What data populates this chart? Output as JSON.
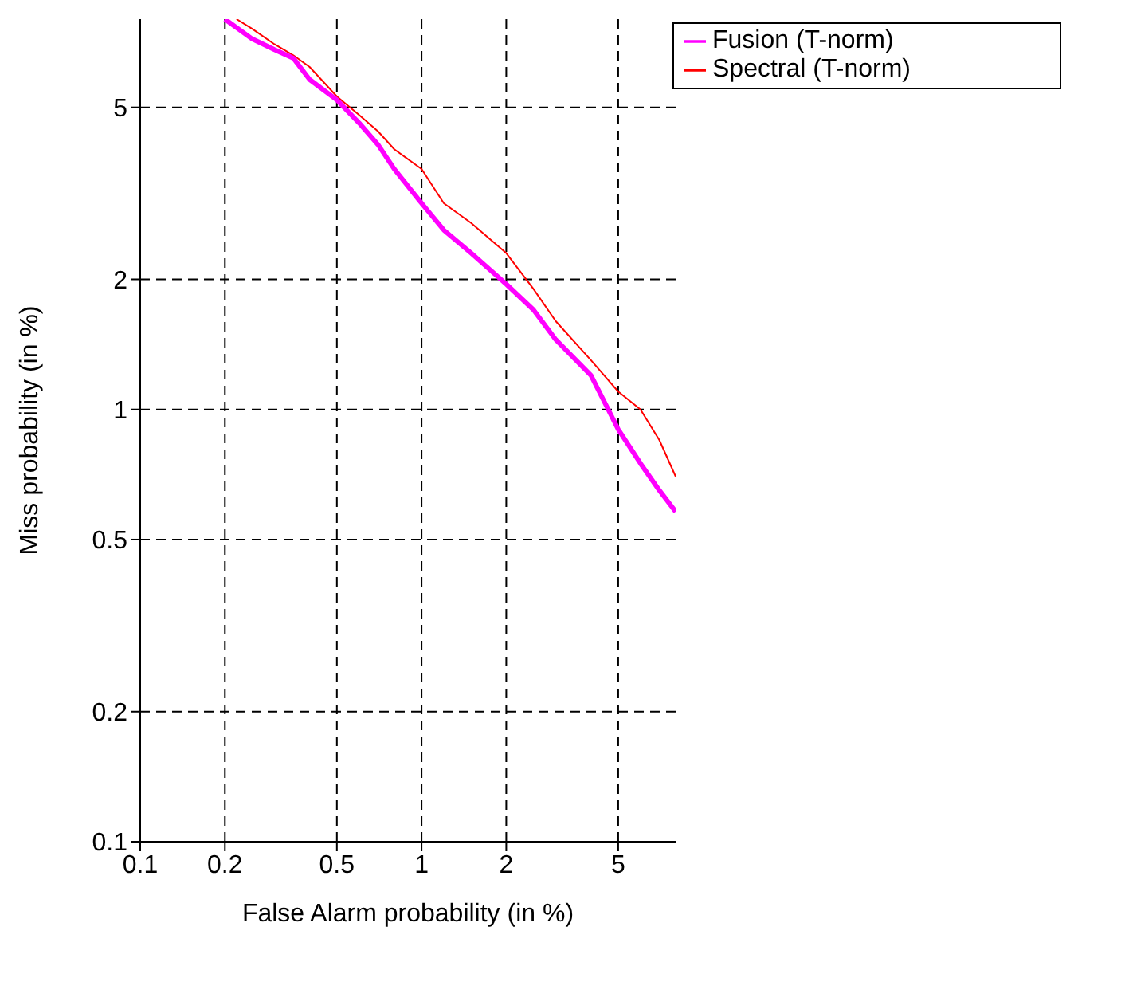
{
  "chart_data": {
    "type": "line",
    "xlabel": "False Alarm probability (in %)",
    "ylabel": "Miss probability (in %)",
    "series": [
      {
        "name": "Spectral (T-norm)",
        "color": "#ff0000",
        "x": [
          0.22,
          0.25,
          0.3,
          0.35,
          0.4,
          0.5,
          0.6,
          0.7,
          0.8,
          1,
          1.2,
          1.5,
          2,
          2.5,
          3,
          4,
          5,
          6,
          7,
          8
        ],
        "values": [
          8,
          7.6,
          7.0,
          6.6,
          6.2,
          5.3,
          4.8,
          4.4,
          4.0,
          3.6,
          3.0,
          2.7,
          2.3,
          1.9,
          1.6,
          1.3,
          1.1,
          1.0,
          0.85,
          0.7
        ]
      },
      {
        "name": "Fusion (T-norm)",
        "color": "#ff00ff",
        "x": [
          0.2,
          0.25,
          0.3,
          0.35,
          0.4,
          0.5,
          0.6,
          0.7,
          0.8,
          1,
          1.2,
          1.5,
          2,
          2.5,
          3,
          4,
          5,
          6,
          7,
          8
        ],
        "values": [
          8,
          7.2,
          6.8,
          6.5,
          5.8,
          5.2,
          4.6,
          4.1,
          3.6,
          3.0,
          2.6,
          2.3,
          1.95,
          1.7,
          1.45,
          1.2,
          0.9,
          0.75,
          0.65,
          0.58
        ]
      }
    ],
    "xlim": [
      0.1,
      8
    ],
    "ylim": [
      0.1,
      8
    ],
    "xticks": [
      0.1,
      0.2,
      0.5,
      1,
      2,
      5
    ],
    "yticks": [
      0.1,
      0.2,
      0.5,
      1,
      2,
      5
    ],
    "log": "xy",
    "grid": true,
    "legend": "top right",
    "marker": "none",
    "line_style": "solid"
  }
}
